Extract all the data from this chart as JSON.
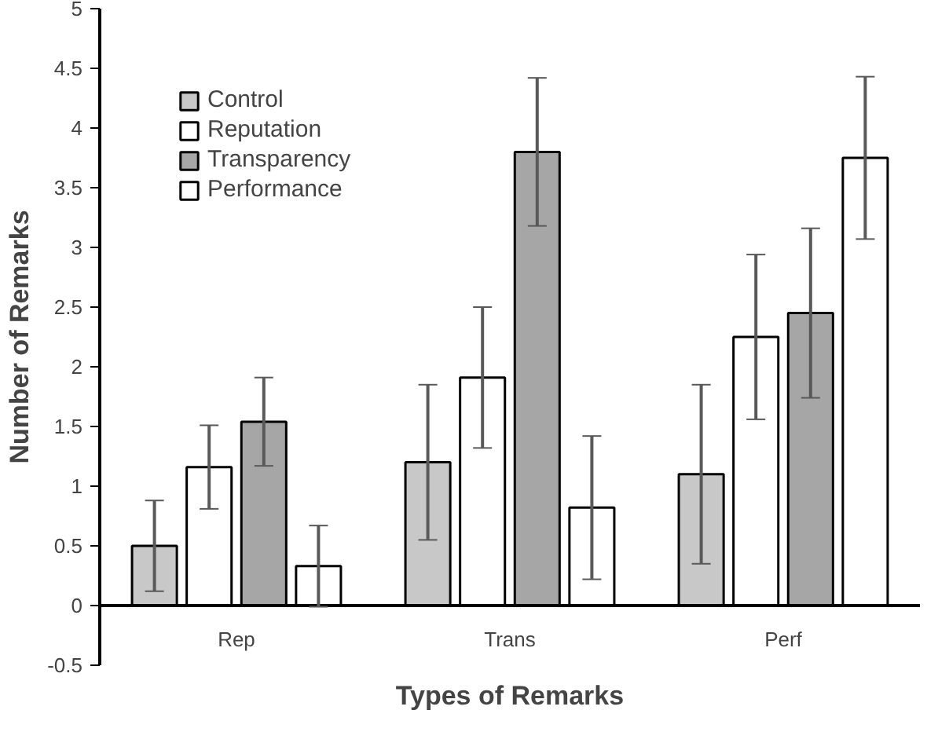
{
  "chart_data": {
    "type": "bar",
    "xlabel": "Types of Remarks",
    "ylabel": "Number of Remarks",
    "categories": [
      "Rep",
      "Trans",
      "Perf"
    ],
    "series": [
      {
        "name": "Control",
        "color": "#c8c8c8",
        "values": [
          0.5,
          1.2,
          1.1
        ],
        "errors": [
          0.38,
          0.65,
          0.75
        ]
      },
      {
        "name": "Reputation",
        "color": "#ffffff",
        "values": [
          1.16,
          1.91,
          2.25
        ],
        "errors": [
          0.35,
          0.59,
          0.69
        ]
      },
      {
        "name": "Transparency",
        "color": "#a6a6a6",
        "values": [
          1.54,
          3.8,
          2.45
        ],
        "errors": [
          0.37,
          0.62,
          0.71
        ]
      },
      {
        "name": "Performance",
        "color": "#ffffff",
        "values": [
          0.33,
          0.82,
          3.75
        ],
        "errors": [
          0.34,
          0.6,
          0.68
        ]
      }
    ],
    "ylim": [
      -0.5,
      5
    ],
    "yticks": [
      -0.5,
      0,
      0.5,
      1,
      1.5,
      2,
      2.5,
      3,
      3.5,
      4,
      4.5,
      5
    ],
    "grid": false,
    "legend": "top left"
  }
}
